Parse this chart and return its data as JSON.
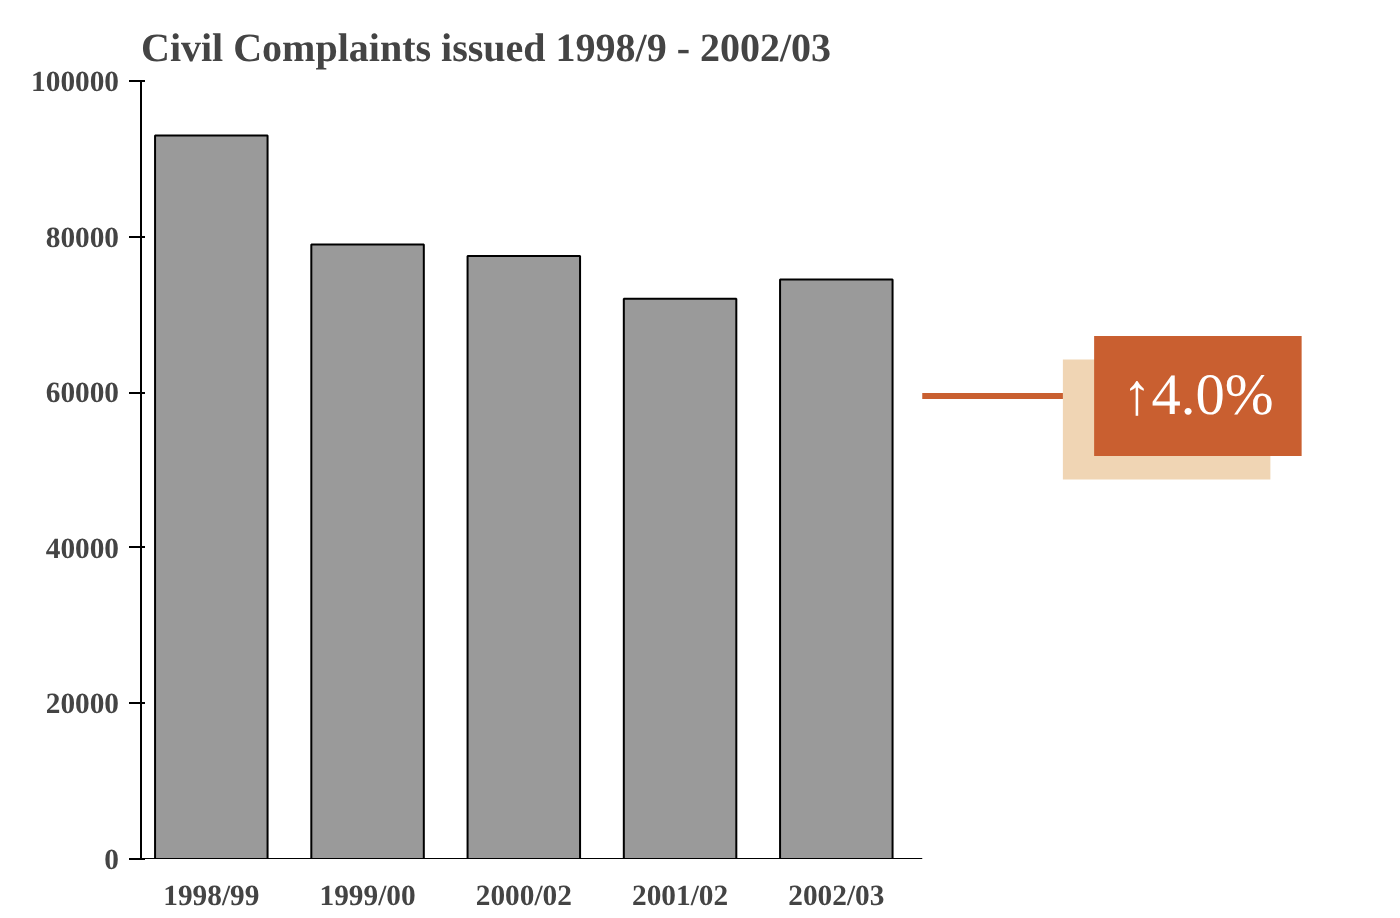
{
  "chart_data": {
    "type": "bar",
    "title": "Civil Complaints issued 1998/9 - 2002/03",
    "categories": [
      "1998/99",
      "1999/00",
      "2000/02",
      "2001/02",
      "2002/03"
    ],
    "values": [
      93000,
      79000,
      77500,
      72000,
      74500
    ],
    "color": "#9a9a9a",
    "ylim": [
      0,
      100000
    ],
    "yticks": [
      0,
      20000,
      40000,
      60000,
      80000,
      100000
    ],
    "grid": false,
    "annotations": [
      "↑4.0%"
    ]
  }
}
